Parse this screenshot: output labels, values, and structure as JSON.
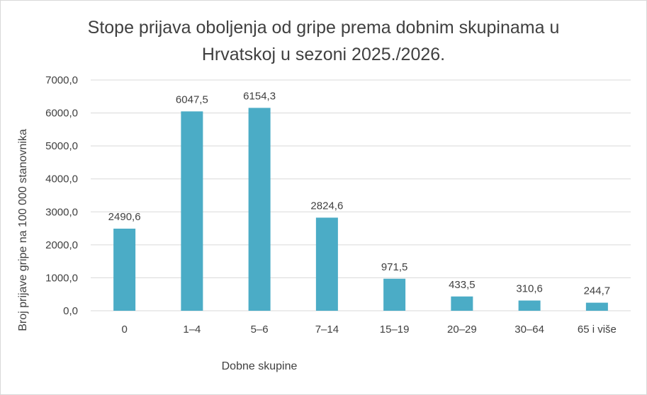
{
  "chart_data": {
    "type": "bar",
    "title_lines": [
      "Stope prijava oboljenja od gripe prema dobnim skupinama u",
      "Hrvatskoj u sezoni 2025./2026."
    ],
    "xlabel": "Dobne skupine",
    "ylabel": "Broj prijave gripe na 100 000 stanovnika",
    "categories": [
      "0",
      "1–4",
      "5–6",
      "7–14",
      "15–19",
      "20–29",
      "30–64",
      "65 i više"
    ],
    "values": [
      2490.6,
      6047.5,
      6154.3,
      2824.6,
      971.5,
      433.5,
      310.6,
      244.7
    ],
    "value_labels": [
      "2490,6",
      "6047,5",
      "6154,3",
      "2824,6",
      "971,5",
      "433,5",
      "310,6",
      "244,7"
    ],
    "ylim": [
      0,
      7000
    ],
    "yticks": [
      "0,0",
      "1000,0",
      "2000,0",
      "3000,0",
      "4000,0",
      "5000,0",
      "6000,0",
      "7000,0"
    ],
    "grid": true,
    "legend": "none",
    "bar_color": "#4bacc6"
  }
}
